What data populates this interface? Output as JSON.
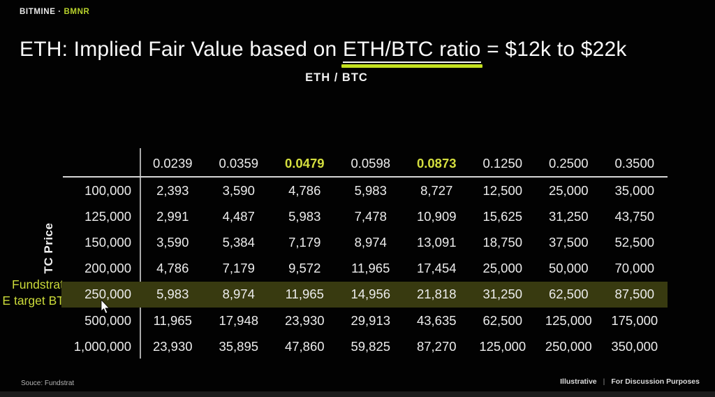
{
  "brand": {
    "name": "BITMINE",
    "separator": "·",
    "ticker": "BMNR"
  },
  "title": {
    "prefix": "ETH: Implied Fair Value based on ",
    "highlight": "ETH/BTC ratio",
    "suffix": " = $12k to $22k"
  },
  "subtitle": "ETH / BTC",
  "left_labels": {
    "axis": "TC Price",
    "callout_line1": "Fundstrat",
    "callout_line2": "E target BTC"
  },
  "table": {
    "col_headers": [
      "0.0239",
      "0.0359",
      "0.0479",
      "0.0598",
      "0.0873",
      "0.1250",
      "0.2500",
      "0.3500"
    ],
    "accent_header_indexes": [
      2,
      4
    ],
    "rows": [
      {
        "btc": "100,000",
        "highlighted": false,
        "values": [
          "2,393",
          "3,590",
          "4,786",
          "5,983",
          "8,727",
          "12,500",
          "25,000",
          "35,000"
        ]
      },
      {
        "btc": "125,000",
        "highlighted": false,
        "values": [
          "2,991",
          "4,487",
          "5,983",
          "7,478",
          "10,909",
          "15,625",
          "31,250",
          "43,750"
        ]
      },
      {
        "btc": "150,000",
        "highlighted": false,
        "values": [
          "3,590",
          "5,384",
          "7,179",
          "8,974",
          "13,091",
          "18,750",
          "37,500",
          "52,500"
        ]
      },
      {
        "btc": "200,000",
        "highlighted": false,
        "values": [
          "4,786",
          "7,179",
          "9,572",
          "11,965",
          "17,454",
          "25,000",
          "50,000",
          "70,000"
        ]
      },
      {
        "btc": "250,000",
        "highlighted": true,
        "values": [
          "5,983",
          "8,974",
          "11,965",
          "14,956",
          "21,818",
          "31,250",
          "62,500",
          "87,500"
        ]
      },
      {
        "btc": "500,000",
        "highlighted": false,
        "values": [
          "11,965",
          "17,948",
          "23,930",
          "29,913",
          "43,635",
          "62,500",
          "125,000",
          "175,000"
        ]
      },
      {
        "btc": "1,000,000",
        "highlighted": false,
        "values": [
          "23,930",
          "35,895",
          "47,860",
          "59,825",
          "87,270",
          "125,000",
          "250,000",
          "350,000"
        ]
      }
    ]
  },
  "footer": {
    "source": "Souce: Fundstrat",
    "note_left": "Illustrative",
    "note_sep": "|",
    "note_right": "For Discussion Purposes"
  },
  "colors": {
    "background": "#020202",
    "accent_yellow_green": "#c3d82f",
    "title_underline": "#c3e01f",
    "highlight_row_bg": "#383a10",
    "table_text": "#ececec"
  },
  "chart_data": {
    "type": "table",
    "title": "ETH: Implied Fair Value based on ETH/BTC ratio = $12k to $22k",
    "implied_range": "$12k to $22k",
    "column_axis_label": "ETH/BTC",
    "row_axis_label": "BTC Price",
    "columns_eth_btc_ratio": [
      0.0239,
      0.0359,
      0.0479,
      0.0598,
      0.0873,
      0.125,
      0.25,
      0.35
    ],
    "rows_btc_price": [
      100000,
      125000,
      150000,
      200000,
      250000,
      500000,
      1000000
    ],
    "values": [
      [
        2393,
        3590,
        4786,
        5983,
        8727,
        12500,
        25000,
        35000
      ],
      [
        2991,
        4487,
        5983,
        7478,
        10909,
        15625,
        31250,
        43750
      ],
      [
        3590,
        5384,
        7179,
        8974,
        13091,
        18750,
        37500,
        52500
      ],
      [
        4786,
        7179,
        9572,
        11965,
        17454,
        25000,
        50000,
        70000
      ],
      [
        5983,
        8974,
        11965,
        14956,
        21818,
        31250,
        62500,
        87500
      ],
      [
        11965,
        17948,
        23930,
        29913,
        43635,
        62500,
        125000,
        175000
      ],
      [
        23930,
        35895,
        47860,
        59825,
        87270,
        125000,
        250000,
        350000
      ]
    ],
    "highlighted_row_btc_price": 250000,
    "highlighted_row_annotation": "Fundstrat E target BTC",
    "highlighted_columns_ratio": [
      0.0479,
      0.0873
    ],
    "legend_position": "none",
    "grid": "partial (header rule + row-label rule)"
  }
}
